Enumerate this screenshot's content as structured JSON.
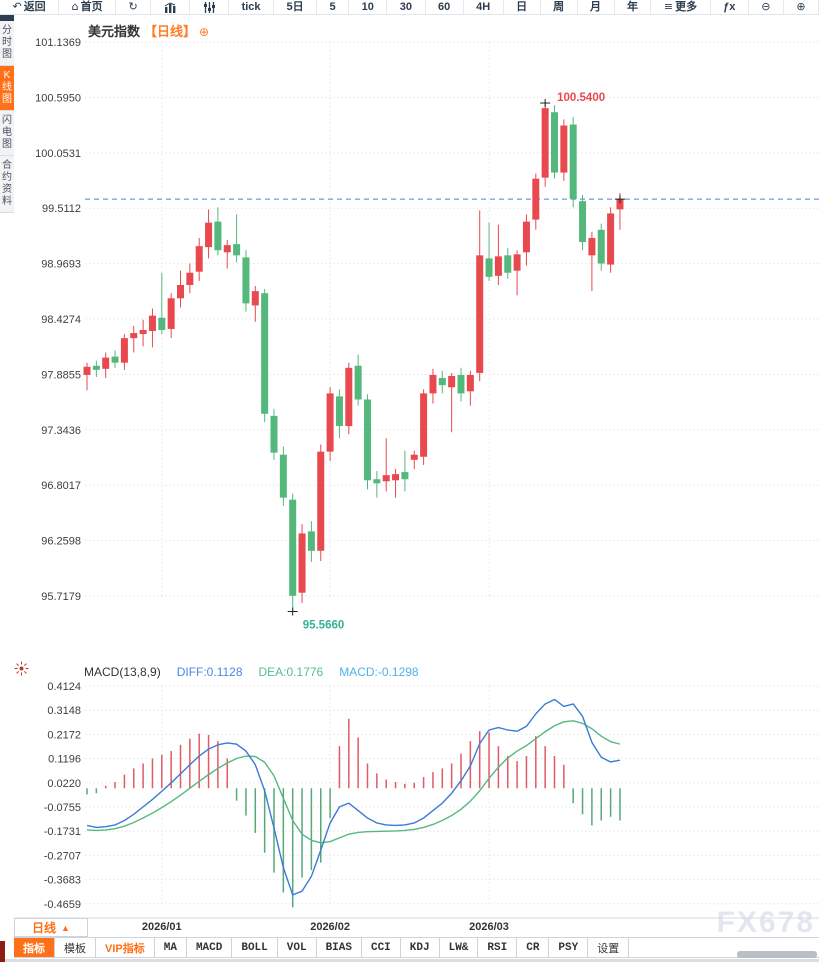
{
  "toolbar": {
    "items": [
      {
        "name": "back",
        "icon": "back-icon",
        "glyph": "↶",
        "label": "返回"
      },
      {
        "name": "home",
        "icon": "home-icon",
        "glyph": "⌂",
        "label": "首页"
      },
      {
        "name": "refresh",
        "icon": "refresh-icon",
        "glyph": "↻",
        "label": ""
      },
      {
        "name": "bar-chart",
        "icon": "bar-chart-icon",
        "glyph": "svg:bars",
        "label": ""
      },
      {
        "name": "sliders",
        "icon": "sliders-icon",
        "glyph": "svg:sliders",
        "label": ""
      },
      {
        "name": "tick",
        "label": "tick"
      },
      {
        "name": "5d",
        "label": "5日"
      },
      {
        "name": "5",
        "label": "5"
      },
      {
        "name": "10",
        "label": "10"
      },
      {
        "name": "30",
        "label": "30"
      },
      {
        "name": "60",
        "label": "60"
      },
      {
        "name": "4h",
        "label": "4H"
      },
      {
        "name": "day",
        "label": "日"
      },
      {
        "name": "week",
        "label": "周"
      },
      {
        "name": "month",
        "label": "月"
      },
      {
        "name": "year",
        "label": "年"
      },
      {
        "name": "more",
        "icon": "menu-icon",
        "glyph": "≡",
        "label": "更多"
      },
      {
        "name": "fx",
        "label": "ƒx"
      },
      {
        "name": "zoom-out",
        "icon": "zoom-out-icon",
        "glyph": "⊖",
        "label": ""
      },
      {
        "name": "zoom-in",
        "icon": "zoom-in-icon",
        "glyph": "⊕",
        "label": ""
      }
    ]
  },
  "sidebar": {
    "items": [
      {
        "label": "分时图",
        "active": false
      },
      {
        "label": "K线图",
        "active": true
      },
      {
        "label": "闪电图",
        "active": false
      },
      {
        "label": "合约资料",
        "active": false
      }
    ]
  },
  "chart": {
    "title": "美元指数",
    "period_tag": "【日线】",
    "add_symbol": "⊕",
    "y_axis_labels": [
      "101.1369",
      "100.5950",
      "100.0531",
      "99.5112",
      "98.9693",
      "98.4274",
      "97.8855",
      "97.3436",
      "96.8017",
      "96.2598",
      "95.7179"
    ],
    "x_axis_labels": [
      "2026/01",
      "2026/02",
      "2026/03"
    ],
    "high_annotation": "100.5400",
    "low_annotation": "95.5660",
    "colors": {
      "up": "#e8494f",
      "down": "#54b87d",
      "grid": "#e3e6ea",
      "dashed_line": "#3d87e8",
      "diff_line": "#3a7bd5",
      "dea_line": "#56b87f",
      "hist_up": "#e05b62",
      "hist_down": "#56a877",
      "high_label": "#e8494f",
      "low_label": "#35b295",
      "accent": "#ff7018",
      "axis_text": "#3c4043"
    }
  },
  "macd_panel": {
    "title": "MACD(13,8,9)",
    "diff_label": "DIFF:0.1128",
    "dea_label": "DEA:0.1776",
    "macd_label": "MACD:-0.1298",
    "y_axis_labels": [
      "0.4124",
      "0.3148",
      "0.2172",
      "0.1196",
      "0.0220",
      "-0.0755",
      "-0.1731",
      "-0.2707",
      "-0.3683",
      "-0.4659"
    ]
  },
  "bottom": {
    "period_button": {
      "label": "日线",
      "arrow": "▲"
    },
    "tabs": [
      {
        "label": "指标",
        "active": true
      },
      {
        "label": "模板"
      },
      {
        "label": "VIP指标",
        "vip": true
      },
      {
        "label": "MA",
        "latin": true
      },
      {
        "label": "MACD",
        "latin": true
      },
      {
        "label": "BOLL",
        "latin": true
      },
      {
        "label": "VOL",
        "latin": true
      },
      {
        "label": "BIAS",
        "latin": true
      },
      {
        "label": "CCI",
        "latin": true
      },
      {
        "label": "KDJ",
        "latin": true
      },
      {
        "label": "LW&",
        "latin": true
      },
      {
        "label": "RSI",
        "latin": true
      },
      {
        "label": "CR",
        "latin": true
      },
      {
        "label": "PSY",
        "latin": true
      },
      {
        "label": "设置"
      }
    ]
  },
  "watermark": "FX678",
  "chart_data": {
    "type": "candlestick+macd",
    "instrument": "美元指数",
    "period": "日线",
    "y_axis_ticks": [
      101.1369,
      100.595,
      100.0531,
      99.5112,
      98.9693,
      98.4274,
      97.8855,
      97.3436,
      96.8017,
      96.2598,
      95.7179
    ],
    "macd_y_ticks": [
      0.4124,
      0.3148,
      0.2172,
      0.1196,
      0.022,
      -0.0755,
      -0.1731,
      -0.2707,
      -0.3683,
      -0.4659
    ],
    "high_point": 100.54,
    "low_point": 95.566,
    "last_price": 99.6,
    "months": [
      {
        "label": "2026/01",
        "start_index": 9
      },
      {
        "label": "2026/02",
        "start_index": 27
      },
      {
        "label": "2026/03",
        "start_index": 44
      }
    ],
    "candles": [
      [
        97.88,
        98.0,
        97.73,
        97.96
      ],
      [
        97.97,
        98.02,
        97.86,
        97.93
      ],
      [
        97.94,
        98.1,
        97.85,
        98.05
      ],
      [
        98.06,
        98.12,
        97.95,
        98.0
      ],
      [
        98.0,
        98.28,
        97.93,
        98.24
      ],
      [
        98.24,
        98.36,
        98.1,
        98.29
      ],
      [
        98.28,
        98.42,
        98.16,
        98.32
      ],
      [
        98.31,
        98.53,
        98.15,
        98.46
      ],
      [
        98.44,
        98.88,
        98.28,
        98.32
      ],
      [
        98.33,
        98.68,
        98.24,
        98.63
      ],
      [
        98.63,
        98.9,
        98.54,
        98.76
      ],
      [
        98.76,
        98.97,
        98.68,
        98.88
      ],
      [
        98.89,
        99.22,
        98.8,
        99.14
      ],
      [
        99.13,
        99.5,
        99.02,
        99.37
      ],
      [
        99.38,
        99.52,
        99.05,
        99.1
      ],
      [
        99.08,
        99.2,
        98.92,
        99.15
      ],
      [
        99.16,
        99.45,
        98.98,
        99.05
      ],
      [
        99.03,
        99.1,
        98.5,
        98.58
      ],
      [
        98.56,
        98.75,
        98.4,
        98.7
      ],
      [
        98.68,
        98.72,
        97.42,
        97.5
      ],
      [
        97.48,
        97.55,
        97.05,
        97.12
      ],
      [
        97.1,
        97.18,
        96.6,
        96.68
      ],
      [
        96.66,
        96.72,
        95.57,
        95.72
      ],
      [
        95.75,
        96.42,
        95.65,
        96.33
      ],
      [
        96.35,
        96.45,
        96.05,
        96.16
      ],
      [
        96.16,
        97.2,
        96.06,
        97.13
      ],
      [
        97.13,
        97.76,
        97.04,
        97.7
      ],
      [
        97.67,
        97.74,
        97.26,
        97.38
      ],
      [
        97.38,
        98.0,
        97.3,
        97.95
      ],
      [
        97.97,
        98.08,
        97.58,
        97.64
      ],
      [
        97.64,
        97.69,
        96.76,
        96.85
      ],
      [
        96.86,
        96.94,
        96.68,
        96.82
      ],
      [
        96.84,
        97.26,
        96.74,
        96.9
      ],
      [
        96.85,
        96.96,
        96.68,
        96.91
      ],
      [
        96.93,
        97.14,
        96.74,
        96.86
      ],
      [
        97.05,
        97.14,
        96.96,
        97.1
      ],
      [
        97.08,
        97.74,
        97.0,
        97.7
      ],
      [
        97.7,
        97.94,
        97.6,
        97.88
      ],
      [
        97.85,
        97.92,
        97.7,
        97.78
      ],
      [
        97.76,
        97.9,
        97.32,
        97.87
      ],
      [
        97.88,
        97.95,
        97.62,
        97.7
      ],
      [
        97.72,
        97.92,
        97.58,
        97.88
      ],
      [
        97.9,
        99.49,
        97.82,
        99.05
      ],
      [
        99.02,
        99.37,
        98.8,
        98.84
      ],
      [
        98.85,
        99.35,
        98.76,
        99.04
      ],
      [
        99.05,
        99.12,
        98.82,
        98.88
      ],
      [
        98.9,
        99.1,
        98.66,
        99.06
      ],
      [
        99.08,
        99.45,
        98.95,
        99.38
      ],
      [
        99.4,
        99.85,
        99.3,
        99.8
      ],
      [
        99.81,
        100.54,
        99.72,
        100.49
      ],
      [
        100.45,
        100.52,
        99.8,
        99.86
      ],
      [
        99.86,
        100.38,
        99.78,
        100.32
      ],
      [
        100.33,
        100.4,
        99.52,
        99.6
      ],
      [
        99.58,
        99.64,
        99.1,
        99.18
      ],
      [
        99.05,
        99.28,
        98.7,
        99.22
      ],
      [
        99.3,
        99.36,
        98.9,
        98.97
      ],
      [
        98.96,
        99.52,
        98.88,
        99.46
      ],
      [
        99.5,
        99.66,
        99.3,
        99.6
      ]
    ],
    "macd": {
      "diff": [
        -0.15,
        -0.158,
        -0.155,
        -0.148,
        -0.13,
        -0.105,
        -0.075,
        -0.045,
        -0.012,
        0.022,
        0.058,
        0.095,
        0.13,
        0.158,
        0.175,
        0.183,
        0.178,
        0.15,
        0.095,
        -0.01,
        -0.16,
        -0.32,
        -0.43,
        -0.415,
        -0.355,
        -0.25,
        -0.14,
        -0.075,
        -0.06,
        -0.09,
        -0.12,
        -0.14,
        -0.148,
        -0.15,
        -0.148,
        -0.14,
        -0.12,
        -0.09,
        -0.06,
        -0.02,
        0.03,
        0.09,
        0.18,
        0.235,
        0.245,
        0.235,
        0.23,
        0.25,
        0.3,
        0.34,
        0.358,
        0.33,
        0.34,
        0.29,
        0.185,
        0.125,
        0.106,
        0.113
      ],
      "dea": [
        -0.168,
        -0.17,
        -0.168,
        -0.163,
        -0.153,
        -0.138,
        -0.12,
        -0.1,
        -0.078,
        -0.054,
        -0.028,
        0.0,
        0.028,
        0.055,
        0.08,
        0.102,
        0.12,
        0.13,
        0.128,
        0.105,
        0.05,
        -0.04,
        -0.13,
        -0.185,
        -0.21,
        -0.22,
        -0.215,
        -0.2,
        -0.185,
        -0.178,
        -0.175,
        -0.174,
        -0.173,
        -0.172,
        -0.17,
        -0.166,
        -0.158,
        -0.146,
        -0.13,
        -0.11,
        -0.085,
        -0.052,
        -0.01,
        0.04,
        0.085,
        0.122,
        0.15,
        0.172,
        0.2,
        0.228,
        0.252,
        0.268,
        0.272,
        0.262,
        0.24,
        0.21,
        0.188,
        0.178
      ],
      "hist": [
        -0.025,
        -0.02,
        0.01,
        0.025,
        0.055,
        0.08,
        0.1,
        0.12,
        0.135,
        0.15,
        0.175,
        0.2,
        0.22,
        0.215,
        0.19,
        0.12,
        -0.05,
        -0.11,
        -0.18,
        -0.26,
        -0.34,
        -0.42,
        -0.48,
        -0.36,
        -0.33,
        -0.3,
        -0.12,
        0.17,
        0.28,
        0.205,
        0.1,
        0.06,
        0.035,
        0.025,
        0.018,
        0.022,
        0.045,
        0.065,
        0.08,
        0.1,
        0.14,
        0.19,
        0.23,
        0.225,
        0.17,
        0.13,
        0.11,
        0.13,
        0.21,
        0.17,
        0.13,
        0.095,
        -0.06,
        -0.105,
        -0.15,
        -0.13,
        -0.115,
        -0.13
      ],
      "diff_last": 0.1128,
      "dea_last": 0.1776,
      "macd_last": -0.1298
    }
  }
}
